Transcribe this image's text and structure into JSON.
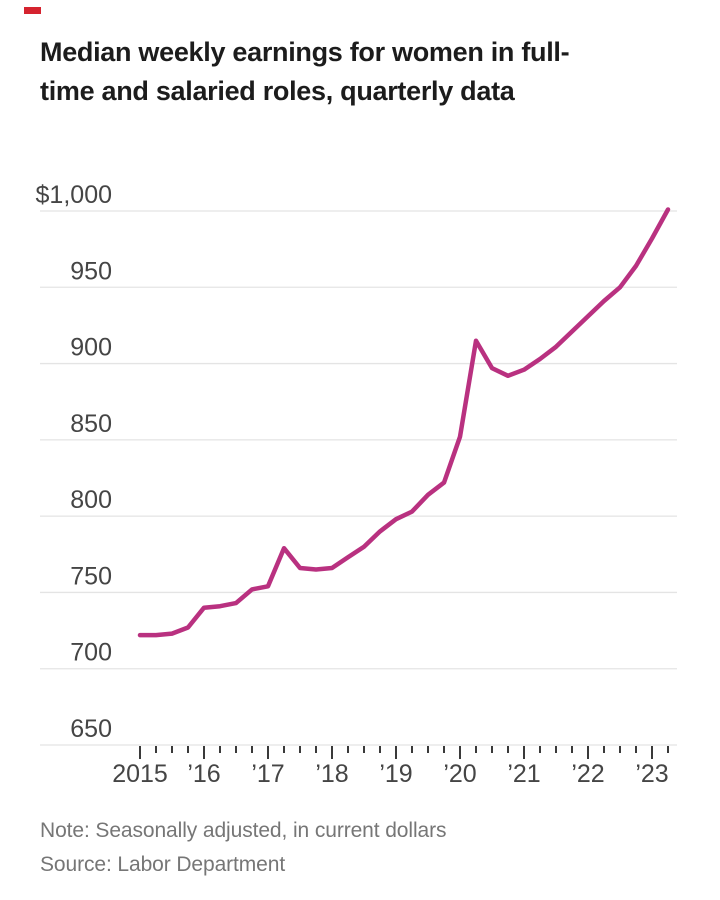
{
  "brand": {
    "dash_color": "#d5232f"
  },
  "title": {
    "line1": "Median weekly earnings for women in full-",
    "line2": "time and salaried roles, quarterly data"
  },
  "notes": {
    "note": "Note: Seasonally adjusted, in current dollars",
    "source": "Source: Labor Department"
  },
  "chart_data": {
    "type": "line",
    "title": "Median weekly earnings for women in full-time and salaried roles, quarterly data",
    "unit": "dollars per week",
    "frequency": "quarterly",
    "x_start": "2015 Q1",
    "x_end": "2023 Q2",
    "ylim": [
      650,
      1000
    ],
    "grid": true,
    "legend": false,
    "line_color": "#b93180",
    "grid_color": "#e4e4e4",
    "tick_color": "#3a3a3a",
    "label_color": "#454545",
    "y_ticks": [
      {
        "value": 1000,
        "label": "$1,000"
      },
      {
        "value": 950,
        "label": "950"
      },
      {
        "value": 900,
        "label": "900"
      },
      {
        "value": 850,
        "label": "850"
      },
      {
        "value": 800,
        "label": "800"
      },
      {
        "value": 750,
        "label": "750"
      },
      {
        "value": 700,
        "label": "700"
      },
      {
        "value": 650,
        "label": "650"
      }
    ],
    "x_year_labels": [
      "2015",
      "’16",
      "’17",
      "’18",
      "’19",
      "’20",
      "’21",
      "’22",
      "’23"
    ],
    "values": [
      722,
      722,
      723,
      727,
      740,
      741,
      743,
      752,
      754,
      779,
      766,
      765,
      766,
      773,
      780,
      790,
      798,
      803,
      814,
      822,
      852,
      915,
      897,
      892,
      896,
      903,
      911,
      921,
      931,
      941,
      950,
      964,
      982,
      1001
    ]
  }
}
